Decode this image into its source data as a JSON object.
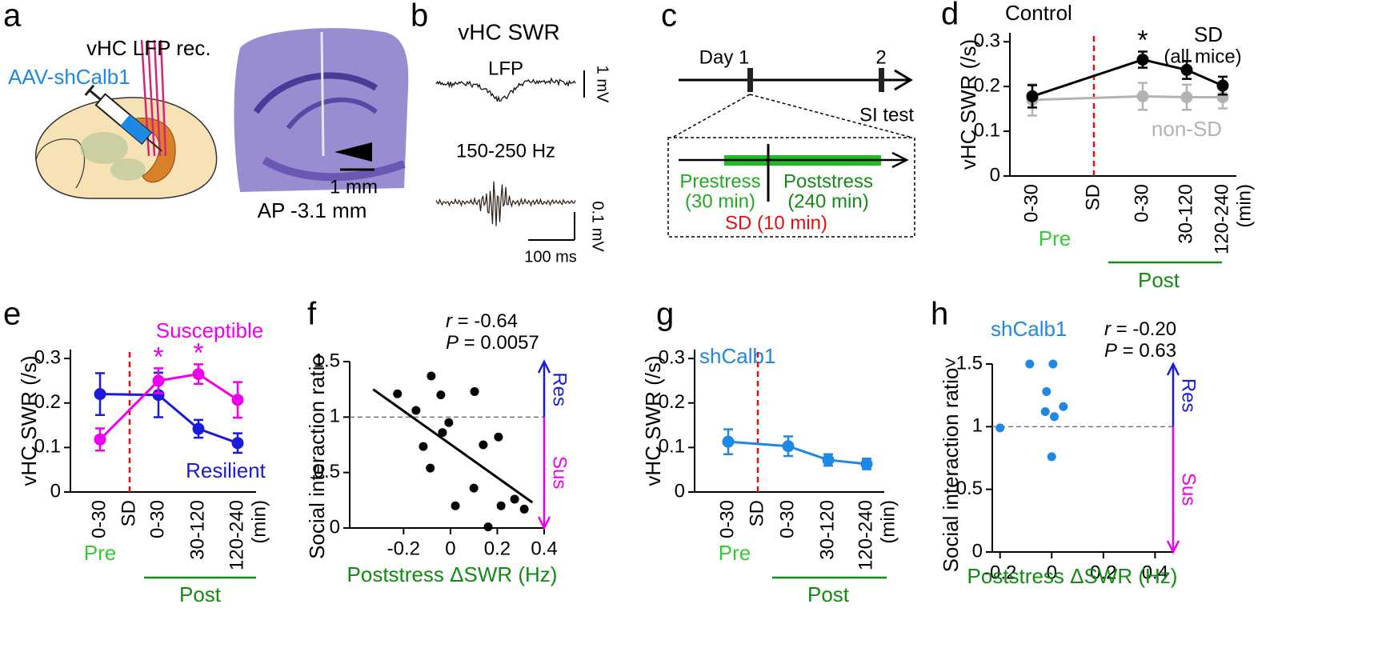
{
  "diagram_a": {
    "label": "a",
    "probe": "vHC LFP rec.",
    "virus": "AAV-shCalb1",
    "scale": "1 mm",
    "section": "AP -3.1 mm"
  },
  "diagram_b": {
    "label": "b",
    "title": "vHC SWR",
    "traces": [
      {
        "name": "LFP",
        "scale": "1 mV"
      },
      {
        "name": "150-250 Hz",
        "scale": "0.1 mV"
      }
    ],
    "time_scale": "100 ms"
  },
  "diagram_c": {
    "label": "c",
    "days": [
      "Day 1",
      "2"
    ],
    "test": "SI test",
    "prestress": [
      "Prestress",
      "(30 min)"
    ],
    "poststress": [
      "Poststress",
      "(240 min)"
    ],
    "stress": "SD (10 min)"
  },
  "chart_data": [
    {
      "label": "d",
      "type": "line",
      "title": "Control",
      "categories": [
        "0-30",
        "0-30",
        "30-120",
        "120-240"
      ],
      "event": "SD",
      "event_color": "#e01010",
      "x_unit": "(min)",
      "groups": [
        {
          "name": "Pre",
          "color": "#33cc33"
        },
        {
          "name": "Post",
          "color": "#138a13"
        }
      ],
      "ylabel": "vHC SWR (/s)",
      "ylim": [
        0,
        0.32
      ],
      "yticks": [
        0,
        0.1,
        0.2,
        0.3
      ],
      "series": [
        {
          "name": "SD",
          "note": "(all mice)",
          "color": "#000000",
          "values": [
            0.178,
            0.26,
            0.237,
            0.202
          ],
          "errors": [
            0.025,
            0.018,
            0.02,
            0.02
          ],
          "stars": [
            null,
            "*",
            null,
            null
          ]
        },
        {
          "name": "non-SD",
          "color": "#b3b3b3",
          "values": [
            0.17,
            0.178,
            0.176,
            0.176
          ],
          "errors": [
            0.035,
            0.03,
            0.028,
            0.025
          ]
        }
      ]
    },
    {
      "label": "e",
      "type": "line",
      "categories": [
        "0-30",
        "0-30",
        "30-120",
        "120-240"
      ],
      "event": "SD",
      "event_color": "#e01010",
      "x_unit": "(min)",
      "groups": [
        {
          "name": "Pre",
          "color": "#33cc33"
        },
        {
          "name": "Post",
          "color": "#138a13"
        }
      ],
      "ylabel": "vHC SWR (/s)",
      "ylim": [
        0,
        0.32
      ],
      "yticks": [
        0,
        0.1,
        0.2,
        0.3
      ],
      "series": [
        {
          "name": "Susceptible",
          "color": "#ee00ee",
          "values": [
            0.118,
            0.25,
            0.265,
            0.207
          ],
          "errors": [
            0.025,
            0.028,
            0.022,
            0.04
          ],
          "stars": [
            null,
            "*",
            "*",
            null
          ]
        },
        {
          "name": "Resilient",
          "color": "#1a1adc",
          "values": [
            0.22,
            0.218,
            0.142,
            0.11
          ],
          "errors": [
            0.047,
            0.05,
            0.02,
            0.022
          ]
        }
      ]
    },
    {
      "label": "f",
      "type": "scatter",
      "color": "#000000",
      "x": [
        -0.226,
        -0.147,
        -0.082,
        -0.116,
        -0.086,
        -0.041,
        -0.007,
        -0.034,
        0.021,
        0.103,
        0.14,
        0.205,
        0.1,
        0.216,
        0.274,
        0.315,
        0.161
      ],
      "values": [
        1.21,
        1.06,
        1.37,
        0.735,
        0.54,
        1.2,
        0.95,
        0.86,
        0.2,
        1.23,
        0.75,
        0.82,
        0.36,
        0.2,
        0.26,
        0.17,
        0.01
      ],
      "xlim": [
        -0.43,
        0.4
      ],
      "xticks": [
        -0.2,
        0,
        0.2,
        0.4
      ],
      "ylim": [
        0,
        1.5
      ],
      "yticks": [
        0,
        0.5,
        1,
        1.5
      ],
      "hline": 1,
      "fit": {
        "x": [
          -0.33,
          0.35
        ],
        "y": [
          1.25,
          0.23
        ]
      },
      "stats": [
        {
          "symbol": "r",
          "text": " = -0.64"
        },
        {
          "symbol": "P",
          "text": " = 0.0057"
        }
      ],
      "arrows": [
        {
          "text": "Res",
          "color": "#1a1adc"
        },
        {
          "text": "Sus",
          "color": "#ee00ee"
        }
      ],
      "xlabel": "Poststress ΔSWR (Hz)",
      "xlabel_color": "#138a13",
      "ylabel": "Social interaction ratio"
    },
    {
      "label": "g",
      "type": "line",
      "title": "shCalb1",
      "title_color": "#1e88e5",
      "categories": [
        "0-30",
        "0-30",
        "30-120",
        "120-240"
      ],
      "event": "SD",
      "event_color": "#e01010",
      "x_unit": "(min)",
      "groups": [
        {
          "name": "Pre",
          "color": "#33cc33"
        },
        {
          "name": "Post",
          "color": "#138a13"
        }
      ],
      "ylabel": "vHC SWR (/s)",
      "ylim": [
        0,
        0.32
      ],
      "yticks": [
        0,
        0.1,
        0.2,
        0.3
      ],
      "series": [
        {
          "color": "#1e88e5",
          "values": [
            0.113,
            0.103,
            0.072,
            0.063
          ],
          "errors": [
            0.028,
            0.022,
            0.013,
            0.012
          ]
        }
      ]
    },
    {
      "label": "h",
      "type": "scatter",
      "title": "shCalb1",
      "title_color": "#1e88e5",
      "color": "#1e88e5",
      "x": [
        -0.2,
        -0.085,
        0.005,
        -0.02,
        -0.025,
        0.045,
        0.01,
        0.0
      ],
      "values": [
        0.99,
        1.5,
        1.5,
        1.28,
        1.12,
        1.16,
        1.08,
        0.76
      ],
      "xlim": [
        -0.23,
        0.47
      ],
      "xticks": [
        -0.2,
        0,
        0.2,
        0.4
      ],
      "ylim": [
        0,
        1.5
      ],
      "yticks": [
        0,
        0.5,
        1,
        {
          "value": 1.5,
          "label": ">1.5"
        }
      ],
      "hline": 1,
      "stats": [
        {
          "symbol": "r",
          "text": " = -0.20"
        },
        {
          "symbol": "P",
          "text": " = 0.63"
        }
      ],
      "arrows": [
        {
          "text": "Res",
          "color": "#1a1adc"
        },
        {
          "text": "Sus",
          "color": "#ee00ee"
        }
      ],
      "xlabel": "Poststress ΔSWR (Hz)",
      "xlabel_color": "#138a13",
      "ylabel": "Social interaction ratio"
    }
  ]
}
